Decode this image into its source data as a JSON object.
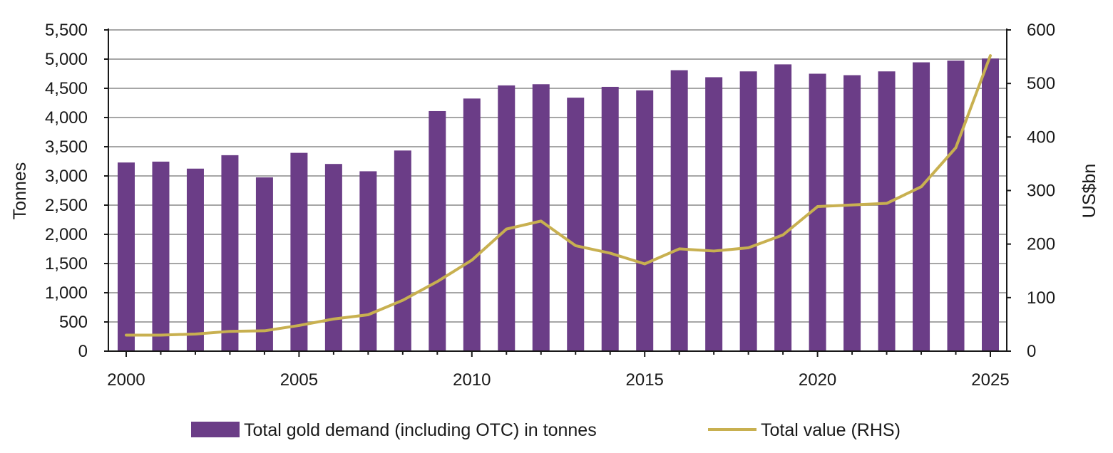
{
  "chart_data": {
    "type": "bar+line",
    "title": "",
    "x": [
      2000,
      2001,
      2002,
      2003,
      2004,
      2005,
      2006,
      2007,
      2008,
      2009,
      2010,
      2011,
      2012,
      2013,
      2014,
      2015,
      2016,
      2017,
      2018,
      2019,
      2020,
      2021,
      2022,
      2023,
      2024,
      2025
    ],
    "x_tick_labels": [
      "2000",
      "2005",
      "2010",
      "2015",
      "2020",
      "2025"
    ],
    "x_tick_values": [
      2000,
      2005,
      2010,
      2015,
      2020,
      2025
    ],
    "series": [
      {
        "name": "Total gold demand (including OTC) in tonnes",
        "type": "bar",
        "axis": "left",
        "color": "#6b3d87",
        "values": [
          3230,
          3245,
          3125,
          3355,
          2975,
          3395,
          3205,
          3080,
          3435,
          4110,
          4325,
          4550,
          4570,
          4340,
          4525,
          4465,
          4810,
          4690,
          4790,
          4910,
          4750,
          4725,
          4790,
          4945,
          4975,
          5010
        ]
      },
      {
        "name": "Total value (RHS)",
        "type": "line",
        "axis": "right",
        "color": "#c8b050",
        "values": [
          30,
          30,
          32,
          37,
          38,
          48,
          60,
          68,
          95,
          130,
          170,
          228,
          243,
          197,
          183,
          163,
          191,
          187,
          193,
          217,
          270,
          273,
          276,
          307,
          380,
          552
        ]
      }
    ],
    "y_left": {
      "label": "Tonnes",
      "ylim": [
        0,
        5500
      ],
      "ticks": [
        0,
        500,
        1000,
        1500,
        2000,
        2500,
        3000,
        3500,
        4000,
        4500,
        5000,
        5500
      ],
      "tick_labels": [
        "0",
        "500",
        "1,000",
        "1,500",
        "2,000",
        "2,500",
        "3,000",
        "3,500",
        "4,000",
        "4,500",
        "5,000",
        "5,500"
      ]
    },
    "y_right": {
      "label": "US$bn",
      "ylim": [
        0,
        600
      ],
      "ticks": [
        0,
        100,
        200,
        300,
        400,
        500,
        600
      ],
      "tick_labels": [
        "0",
        "100",
        "200",
        "300",
        "400",
        "500",
        "600"
      ]
    },
    "grid": true,
    "legend": {
      "placement": "bottom",
      "items": [
        "Total gold demand (including OTC) in tonnes",
        "Total value (RHS)"
      ]
    }
  }
}
